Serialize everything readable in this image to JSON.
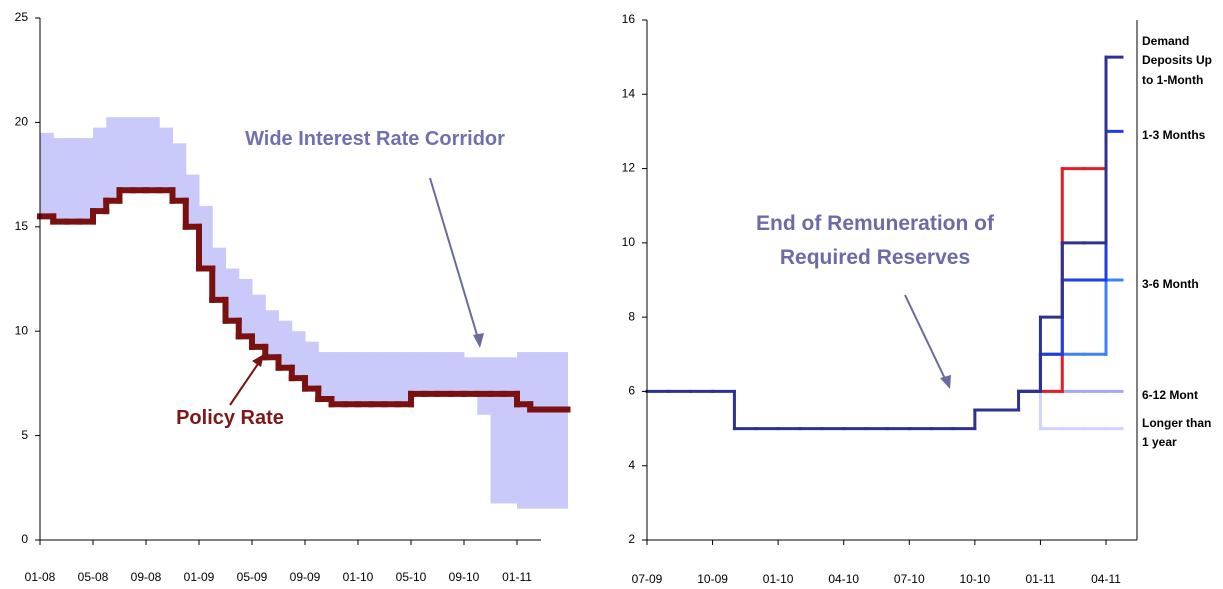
{
  "chart_data": [
    {
      "type": "step",
      "categories": [
        "01-08",
        null,
        null,
        null,
        "05-08",
        null,
        null,
        null,
        "09-08",
        null,
        null,
        null,
        "01-09",
        null,
        null,
        null,
        "05-09",
        null,
        null,
        null,
        "09-09",
        null,
        null,
        null,
        "01-10",
        null,
        null,
        null,
        "05-10",
        null,
        null,
        null,
        "09-10",
        null,
        null,
        null,
        "01-11",
        null,
        null
      ],
      "ylim": [
        0,
        25
      ],
      "yticks": [
        0,
        5,
        10,
        15,
        20,
        25
      ],
      "band": {
        "color": "#c9c9fa",
        "upper": [
          19.5,
          19.25,
          19.25,
          19.25,
          19.75,
          20.25,
          20.25,
          20.25,
          20.25,
          19.75,
          19.0,
          17.5,
          16.0,
          14.0,
          13.0,
          12.5,
          11.75,
          11.0,
          10.5,
          10.0,
          9.5,
          9.0,
          9.0,
          9.0,
          9.0,
          9.0,
          9.0,
          9.0,
          9.0,
          9.0,
          9.0,
          9.0,
          8.75,
          8.75,
          8.75,
          8.75,
          9.0,
          9.0,
          9.0
        ],
        "lower": [
          15.5,
          15.25,
          15.25,
          15.25,
          15.75,
          16.25,
          16.75,
          16.75,
          16.75,
          16.75,
          16.25,
          15.0,
          13.0,
          11.5,
          10.5,
          9.75,
          9.25,
          8.75,
          8.25,
          7.75,
          7.25,
          6.75,
          6.5,
          6.5,
          6.5,
          6.5,
          6.5,
          6.5,
          7.0,
          7.0,
          7.0,
          7.0,
          7.0,
          6.0,
          1.75,
          1.75,
          1.5,
          1.5,
          1.5
        ]
      },
      "series": [
        {
          "color": "#7b1010",
          "values": [
            15.5,
            15.25,
            15.25,
            15.25,
            15.75,
            16.25,
            16.75,
            16.75,
            16.75,
            16.75,
            16.25,
            15.0,
            13.0,
            11.5,
            10.5,
            9.75,
            9.25,
            8.75,
            8.25,
            7.75,
            7.25,
            6.75,
            6.5,
            6.5,
            6.5,
            6.5,
            6.5,
            6.5,
            7.0,
            7.0,
            7.0,
            7.0,
            7.0,
            7.0,
            7.0,
            7.0,
            6.5,
            6.25,
            6.25
          ]
        }
      ],
      "annotations": [
        "Wide Interest Rate Corridor",
        "Policy Rate"
      ]
    },
    {
      "type": "step",
      "categories": [
        "07-09",
        null,
        null,
        "10-09",
        null,
        null,
        "01-10",
        null,
        null,
        "04-10",
        null,
        null,
        "07-10",
        null,
        null,
        "10-10",
        null,
        null,
        "01-11",
        null,
        null,
        "04-11"
      ],
      "ylim": [
        2,
        16
      ],
      "yticks": [
        2,
        4,
        6,
        8,
        10,
        12,
        14,
        16
      ],
      "series": [
        {
          "name": "Longer than 1 year",
          "color": "#cfd3f9",
          "values": [
            null,
            null,
            null,
            null,
            null,
            null,
            null,
            null,
            null,
            null,
            null,
            null,
            null,
            null,
            null,
            null,
            null,
            6,
            5,
            5,
            5,
            5
          ]
        },
        {
          "name": "6-12 Mont",
          "color": "#a4aaf2",
          "values": [
            null,
            null,
            null,
            null,
            null,
            null,
            null,
            null,
            null,
            null,
            null,
            null,
            null,
            null,
            null,
            null,
            null,
            6,
            6,
            6,
            6,
            6
          ]
        },
        {
          "name": "3-6 Month",
          "color": "#3b82f6",
          "values": [
            null,
            null,
            null,
            null,
            null,
            null,
            null,
            null,
            null,
            null,
            null,
            null,
            null,
            null,
            null,
            null,
            null,
            6,
            7,
            7,
            7,
            9
          ]
        },
        {
          "color": "#e41e26",
          "values": [
            null,
            null,
            null,
            null,
            null,
            null,
            null,
            null,
            null,
            null,
            null,
            null,
            null,
            null,
            null,
            null,
            null,
            6,
            6,
            12,
            12,
            null
          ]
        },
        {
          "name": "1-3 Months",
          "color": "#1f3ee0",
          "values": [
            null,
            null,
            null,
            null,
            null,
            null,
            null,
            null,
            null,
            null,
            null,
            null,
            null,
            null,
            null,
            null,
            null,
            6,
            7,
            9,
            9,
            13
          ]
        },
        {
          "name": "Demand Deposits Up to 1-Month",
          "color": "#2e3192",
          "values": [
            6,
            6,
            6,
            6,
            5,
            5,
            5,
            5,
            5,
            5,
            5,
            5,
            5,
            5,
            5,
            5.5,
            5.5,
            6,
            8,
            10,
            10,
            15
          ]
        }
      ],
      "annotations": [
        "End of Remuneration of Required Reserves"
      ]
    }
  ]
}
